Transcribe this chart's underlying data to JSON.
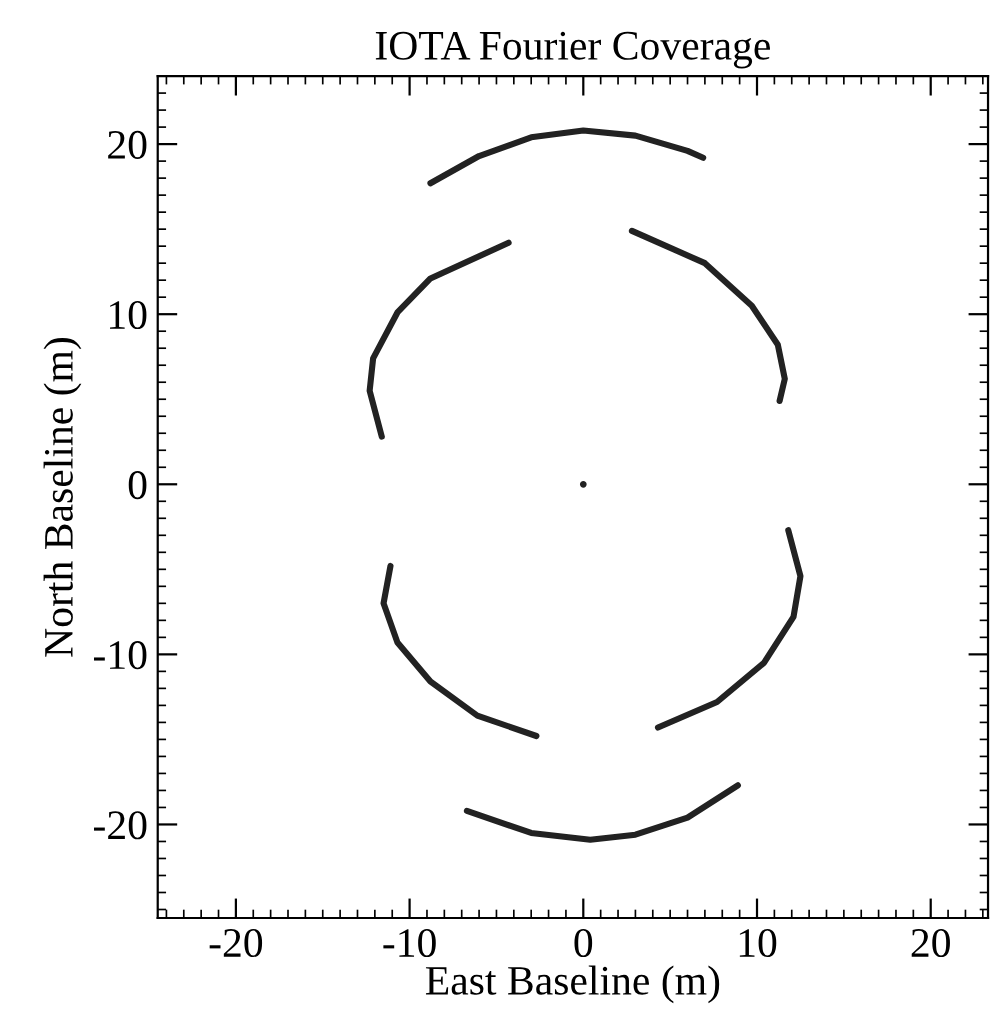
{
  "chart_data": {
    "type": "line",
    "title": "IOTA Fourier Coverage",
    "xlabel": "East Baseline (m)",
    "ylabel": "North Baseline (m)",
    "xlim": [
      -24.5,
      23.3
    ],
    "ylim": [
      -25.5,
      24
    ],
    "xticks": [
      -20,
      -10,
      0,
      10,
      20
    ],
    "yticks": [
      -20,
      -10,
      0,
      10,
      20
    ],
    "grid": false,
    "legend": false,
    "series": [
      {
        "color": "#222222",
        "x": [
          -8.8,
          -6,
          -3,
          0,
          3,
          6,
          6.9
        ],
        "values": [
          17.7,
          19.3,
          20.4,
          20.8,
          20.5,
          19.6,
          19.2
        ]
      },
      {
        "color": "#222222",
        "x": [
          -6.7,
          -3,
          0.4,
          3,
          6,
          8.9
        ],
        "values": [
          -19.2,
          -20.5,
          -20.9,
          -20.6,
          -19.6,
          -17.7
        ]
      },
      {
        "color": "#222222",
        "x": [
          -4.3,
          -8.8,
          -10.7,
          -12.1,
          -12.3,
          -11.6
        ],
        "values": [
          14.2,
          12.1,
          10.1,
          7.4,
          5.5,
          2.8
        ]
      },
      {
        "color": "#222222",
        "x": [
          2.8,
          7.0,
          9.7,
          11.2,
          11.6,
          11.3
        ],
        "values": [
          14.9,
          13.0,
          10.5,
          8.2,
          6.2,
          4.9
        ]
      },
      {
        "color": "#222222",
        "x": [
          -11.1,
          -11.5,
          -10.7,
          -8.8,
          -6.1,
          -2.7
        ],
        "values": [
          -4.8,
          -7.0,
          -9.3,
          -11.6,
          -13.6,
          -14.8
        ]
      },
      {
        "color": "#222222",
        "x": [
          4.3,
          7.7,
          10.4,
          12.1,
          12.5,
          11.8
        ],
        "values": [
          -14.3,
          -12.8,
          -10.5,
          -7.8,
          -5.4,
          -2.7
        ]
      },
      {
        "type": "scatter",
        "color": "#222222",
        "x": [
          0
        ],
        "values": [
          0
        ]
      }
    ]
  }
}
